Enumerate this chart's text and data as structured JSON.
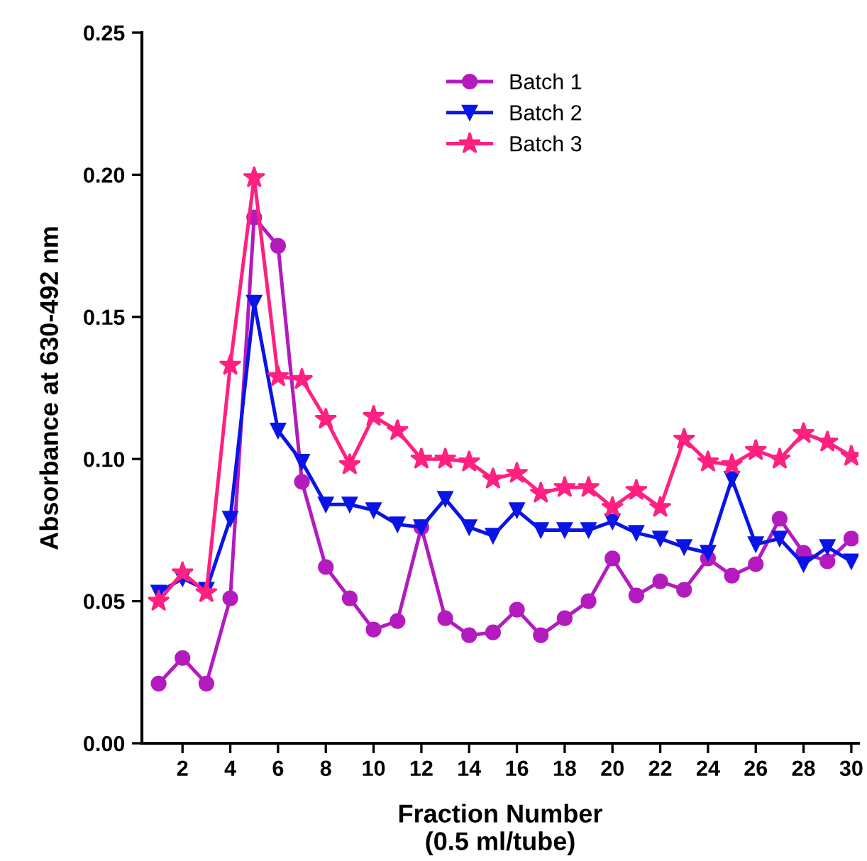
{
  "chart_data": {
    "type": "line",
    "xlabel": "Fraction Number\n(0.5 ml/tube)",
    "ylabel": "Absorbance at 630-492 nm",
    "x": [
      1,
      2,
      3,
      4,
      5,
      6,
      7,
      8,
      9,
      10,
      11,
      12,
      13,
      14,
      15,
      16,
      17,
      18,
      19,
      20,
      21,
      22,
      23,
      24,
      25,
      26,
      27,
      28,
      29,
      30
    ],
    "series": [
      {
        "name": "Batch 1",
        "color": "#b31bbf",
        "marker": "circle",
        "values": [
          0.021,
          0.03,
          0.021,
          0.051,
          0.185,
          0.175,
          0.092,
          0.062,
          0.051,
          0.04,
          0.043,
          0.076,
          0.044,
          0.038,
          0.039,
          0.047,
          0.038,
          0.044,
          0.05,
          0.065,
          0.052,
          0.057,
          0.054,
          0.065,
          0.059,
          0.063,
          0.079,
          0.067,
          0.064,
          0.072
        ]
      },
      {
        "name": "Batch 2",
        "color": "#0a14e6",
        "marker": "triangle",
        "values": [
          0.053,
          0.058,
          0.054,
          0.079,
          0.155,
          0.11,
          0.099,
          0.084,
          0.084,
          0.082,
          0.077,
          0.076,
          0.086,
          0.076,
          0.073,
          0.082,
          0.075,
          0.075,
          0.075,
          0.078,
          0.074,
          0.072,
          0.069,
          0.067,
          0.093,
          0.07,
          0.072,
          0.063,
          0.069,
          0.064
        ]
      },
      {
        "name": "Batch 3",
        "color": "#ff2080",
        "marker": "star",
        "values": [
          0.05,
          0.06,
          0.053,
          0.133,
          0.199,
          0.129,
          0.128,
          0.114,
          0.098,
          0.115,
          0.11,
          0.1,
          0.1,
          0.099,
          0.093,
          0.095,
          0.088,
          0.09,
          0.09,
          0.083,
          0.089,
          0.083,
          0.107,
          0.099,
          0.098,
          0.103,
          0.1,
          0.109,
          0.106,
          0.101
        ]
      }
    ],
    "xlim": [
      0.3,
      30.3
    ],
    "xticks": [
      2,
      4,
      6,
      8,
      10,
      12,
      14,
      16,
      18,
      20,
      22,
      24,
      26,
      28,
      30
    ],
    "ylim": [
      0,
      0.25
    ],
    "yticks": [
      {
        "value": 0,
        "label": "0.00"
      },
      {
        "value": 0.05,
        "label": "0.05"
      },
      {
        "value": 0.1,
        "label": "0.10"
      },
      {
        "value": 0.15,
        "label": "0.15"
      },
      {
        "value": 0.2,
        "label": "0.20"
      },
      {
        "value": 0.25,
        "label": "0.25"
      }
    ],
    "grid": false,
    "legend": "top right",
    "line_style": "solid"
  }
}
